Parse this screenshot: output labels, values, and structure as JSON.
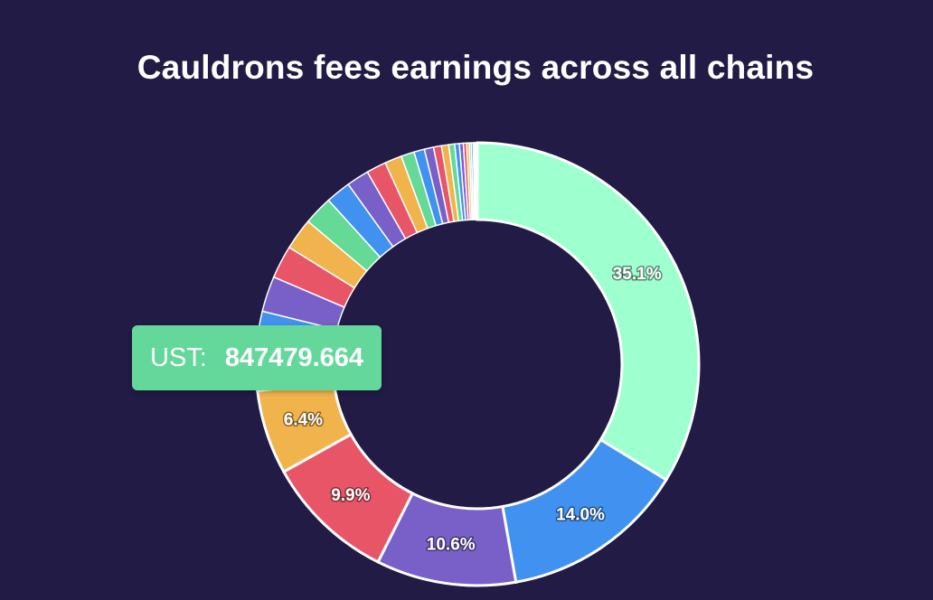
{
  "chart_data": {
    "type": "pie",
    "variant": "donut",
    "title": "Cauldrons fees earnings across all chains",
    "slice_percent_labels": [
      "35.1%",
      "14.0%",
      "10.6%",
      "9.9%",
      "6.4%"
    ],
    "values_percent": [
      35.1,
      14.0,
      10.6,
      9.9,
      6.4,
      3.3,
      2.7,
      2.7,
      2.5,
      2.4,
      2.2,
      1.9,
      1.7,
      1.5,
      1.3,
      1.0,
      0.8,
      0.7,
      0.6,
      0.55,
      0.45,
      0.35,
      0.3,
      0.25,
      0.2,
      0.15,
      0.15,
      0.1,
      0.1,
      0.1
    ],
    "palette": [
      "#9effcf",
      "#4192f0",
      "#7860c8",
      "#e85566",
      "#f1b44c",
      "#65d996"
    ],
    "border_color": "#ffffff",
    "legend": "none",
    "tooltip": {
      "name": "UST:",
      "value": "847479.664",
      "color": "#63d89a"
    }
  }
}
